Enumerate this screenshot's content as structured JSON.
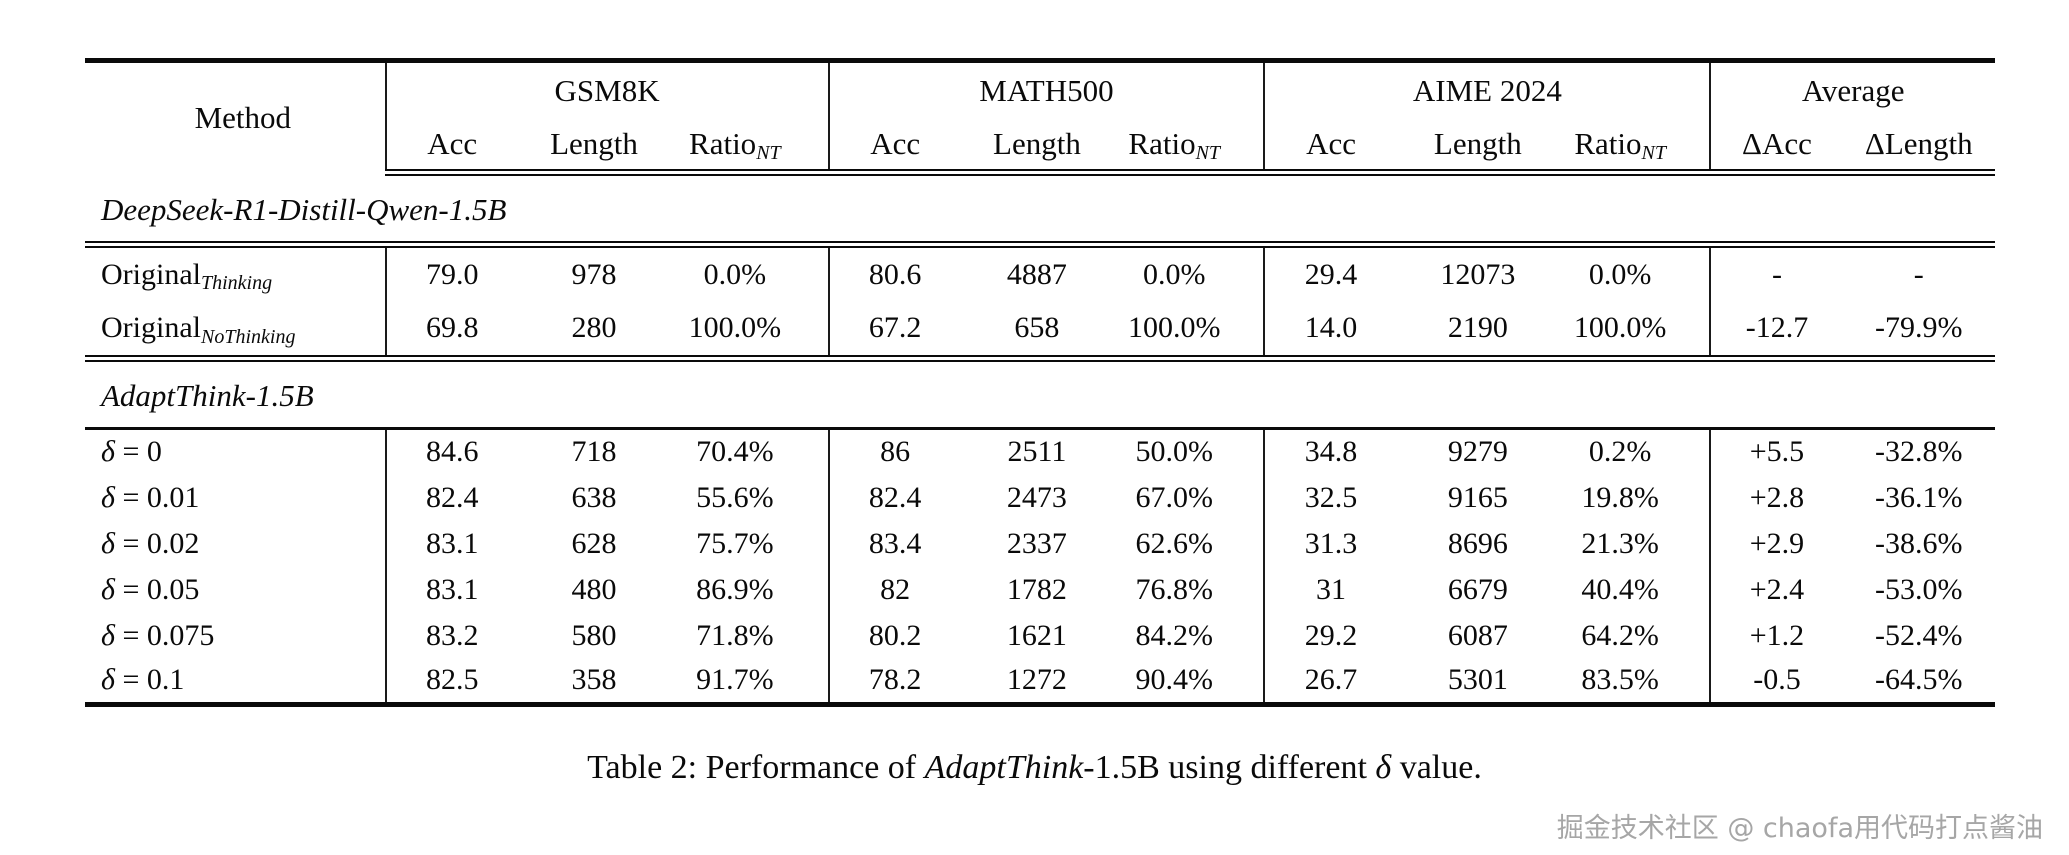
{
  "table": {
    "method_header": "Method",
    "groups": [
      {
        "label": "GSM8K",
        "columns": [
          {
            "label": "Acc"
          },
          {
            "label": "Length"
          },
          {
            "label": "Ratio",
            "sub": "NT"
          }
        ]
      },
      {
        "label": "MATH500",
        "columns": [
          {
            "label": "Acc"
          },
          {
            "label": "Length"
          },
          {
            "label": "Ratio",
            "sub": "NT"
          }
        ]
      },
      {
        "label": "AIME 2024",
        "columns": [
          {
            "label": "Acc"
          },
          {
            "label": "Length"
          },
          {
            "label": "Ratio",
            "sub": "NT"
          }
        ]
      },
      {
        "label": "Average",
        "columns": [
          {
            "label": "ΔAcc"
          },
          {
            "label": "ΔLength"
          }
        ]
      }
    ],
    "sections": [
      {
        "title": "DeepSeek-R1-Distill-Qwen-1.5B",
        "rows": [
          {
            "method_prefix_italic": "",
            "method_main": "Original",
            "method_sub": "Thinking",
            "values": [
              "79.0",
              "978",
              "0.0%",
              "80.6",
              "4887",
              "0.0%",
              "29.4",
              "12073",
              "0.0%",
              "-",
              "-"
            ]
          },
          {
            "method_prefix_italic": "",
            "method_main": "Original",
            "method_sub": "NoThinking",
            "values": [
              "69.8",
              "280",
              "100.0%",
              "67.2",
              "658",
              "100.0%",
              "14.0",
              "2190",
              "100.0%",
              "-12.7",
              "-79.9%"
            ]
          }
        ]
      },
      {
        "title": "AdaptThink-1.5B",
        "rows": [
          {
            "method_prefix_italic": "δ",
            "method_main": " = 0",
            "method_sub": "",
            "values": [
              "84.6",
              "718",
              "70.4%",
              "86",
              "2511",
              "50.0%",
              "34.8",
              "9279",
              "0.2%",
              "+5.5",
              "-32.8%"
            ]
          },
          {
            "method_prefix_italic": "δ",
            "method_main": " = 0.01",
            "method_sub": "",
            "values": [
              "82.4",
              "638",
              "55.6%",
              "82.4",
              "2473",
              "67.0%",
              "32.5",
              "9165",
              "19.8%",
              "+2.8",
              "-36.1%"
            ]
          },
          {
            "method_prefix_italic": "δ",
            "method_main": " = 0.02",
            "method_sub": "",
            "values": [
              "83.1",
              "628",
              "75.7%",
              "83.4",
              "2337",
              "62.6%",
              "31.3",
              "8696",
              "21.3%",
              "+2.9",
              "-38.6%"
            ]
          },
          {
            "method_prefix_italic": "δ",
            "method_main": " = 0.05",
            "method_sub": "",
            "values": [
              "83.1",
              "480",
              "86.9%",
              "82",
              "1782",
              "76.8%",
              "31",
              "6679",
              "40.4%",
              "+2.4",
              "-53.0%"
            ]
          },
          {
            "method_prefix_italic": "δ",
            "method_main": " = 0.075",
            "method_sub": "",
            "values": [
              "83.2",
              "580",
              "71.8%",
              "80.2",
              "1621",
              "84.2%",
              "29.2",
              "6087",
              "64.2%",
              "+1.2",
              "-52.4%"
            ]
          },
          {
            "method_prefix_italic": "δ",
            "method_main": " = 0.1",
            "method_sub": "",
            "values": [
              "82.5",
              "358",
              "91.7%",
              "78.2",
              "1272",
              "90.4%",
              "26.7",
              "5301",
              "83.5%",
              "-0.5",
              "-64.5%"
            ]
          }
        ]
      }
    ]
  },
  "caption": {
    "part1": "Table 2: Performance of ",
    "italic1": "AdaptThink",
    "part2": "-1.5B using different ",
    "italic2": "δ",
    "part3": " value."
  },
  "watermark": "掘金技术社区 @ chaofa用代码打点酱油"
}
